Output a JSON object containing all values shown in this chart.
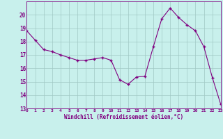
{
  "x": [
    0,
    1,
    2,
    3,
    4,
    5,
    6,
    7,
    8,
    9,
    10,
    11,
    12,
    13,
    14,
    15,
    16,
    17,
    18,
    19,
    20,
    21,
    22,
    23
  ],
  "y": [
    18.8,
    18.1,
    17.4,
    17.25,
    17.0,
    16.8,
    16.6,
    16.6,
    16.7,
    16.8,
    16.6,
    15.15,
    14.8,
    15.35,
    15.4,
    17.6,
    19.7,
    20.5,
    19.8,
    19.25,
    18.8,
    17.6,
    15.3,
    13.3
  ],
  "line_color": "#800080",
  "marker_color": "#800080",
  "bg_color": "#c8f0ec",
  "grid_color": "#a0c8c4",
  "xlabel": "Windchill (Refroidissement éolien,°C)",
  "xlabel_color": "#800080",
  "tick_color": "#800080",
  "ylim": [
    13,
    21
  ],
  "xlim": [
    0,
    23
  ],
  "yticks": [
    13,
    14,
    15,
    16,
    17,
    18,
    19,
    20
  ],
  "xticks": [
    0,
    1,
    2,
    3,
    4,
    5,
    6,
    7,
    8,
    9,
    10,
    11,
    12,
    13,
    14,
    15,
    16,
    17,
    18,
    19,
    20,
    21,
    22,
    23
  ],
  "spine_color": "#800080",
  "figsize": [
    3.2,
    2.0
  ],
  "dpi": 100
}
